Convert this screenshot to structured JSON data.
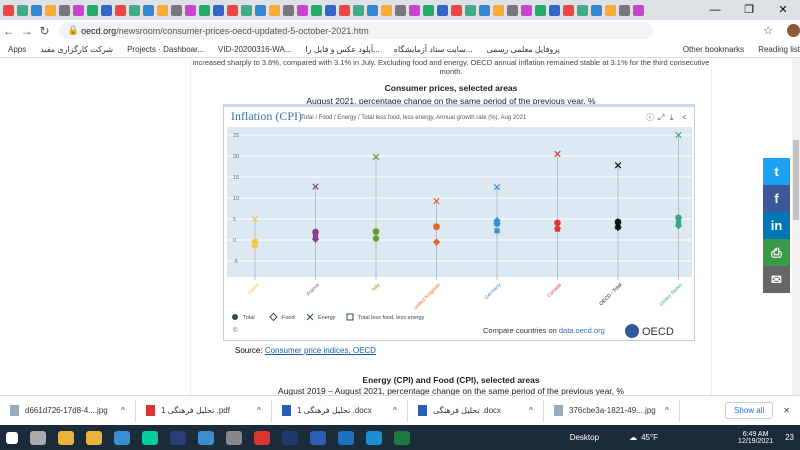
{
  "browser": {
    "url_domain": "oecd.org",
    "url_path": "/newsroom/consumer-prices-oecd-updated-5-october-2021.htm",
    "bookmarks": [
      "Apps",
      "شرکت کارگزاری مفید",
      "Projects · Dashboar...",
      "VID-20200316-WA...",
      "آپلود عکس و فایل را...",
      "سایت ستاد آزمایشگاه...",
      "پروفایل معلمی رسمی"
    ],
    "other_bookmarks": "Other bookmarks",
    "reading_list": "Reading list"
  },
  "article": {
    "intro": "increased sharply to 3.6%, compared with 3.1% in July. Excluding food and energy, OECD annual inflation remained stable at 3.1% for the third consecutive month.",
    "title": "Consumer prices, selected areas",
    "subtitle": "August 2021, percentage change on the same period of the previous year, %",
    "source_label": "Source:",
    "source_link": "Consumer price indices, OECD",
    "title2": "Energy (CPI) and Food (CPI), selected areas",
    "subtitle2": "August 2019 – August 2021, percentage change on the same period of the previous year, %"
  },
  "chart_data": {
    "type": "scatter",
    "title": "Inflation (CPI)",
    "subtitle": "Total / Food / Energy / Total less food, less energy, Annual growth rate (%), Aug 2021",
    "ylim": [
      -5,
      25
    ],
    "yticks": [
      -5,
      0,
      5,
      10,
      15,
      20,
      25
    ],
    "grid": true,
    "legend_placement": "bottom-left",
    "categories": [
      "Japan",
      "France",
      "Italy",
      "United Kingdom",
      "Germany",
      "Canada",
      "OECD - Total",
      "United States"
    ],
    "colors": [
      "#f2c94c",
      "#8e3d96",
      "#6a9a2a",
      "#e0662c",
      "#3a8fd0",
      "#e0363b",
      "#111111",
      "#3aa878"
    ],
    "series": [
      {
        "name": "Total",
        "marker": "circle",
        "values": [
          -0.4,
          1.9,
          2.0,
          3.2,
          3.9,
          4.1,
          4.3,
          5.3
        ]
      },
      {
        "name": "Food",
        "marker": "diamond",
        "values": [
          -1.5,
          0.2,
          0.3,
          -0.5,
          4.6,
          2.8,
          3.0,
          3.4
        ]
      },
      {
        "name": "Energy",
        "marker": "x",
        "values": [
          5.1,
          12.7,
          19.8,
          9.3,
          12.6,
          20.5,
          17.8,
          25.0
        ]
      },
      {
        "name": "Total less food, less energy",
        "marker": "square",
        "values": [
          -0.9,
          0.8,
          0.4,
          3.1,
          2.2,
          2.6,
          3.1,
          4.0
        ]
      }
    ],
    "copyright": "©",
    "compare": "Compare countries on ",
    "compare_link": "data.oecd.org",
    "logo": "OECD"
  },
  "share": [
    "t",
    "f",
    "in",
    "print",
    "mail"
  ],
  "downloads": {
    "items": [
      "d661d726-17d8-4....jpg",
      "تحلیل فرهنگی 1 .pdf",
      "تحلیل فرهنگی 1 .docx",
      "تحلیل فرهنگی .docx",
      "376cbe3a-1821-49....jpg"
    ],
    "show_all": "Show all"
  },
  "taskbar": {
    "desktop": "Desktop",
    "weather": "45°F",
    "time": "6:49 AM",
    "date": "12/19/2021",
    "notif": "23"
  }
}
